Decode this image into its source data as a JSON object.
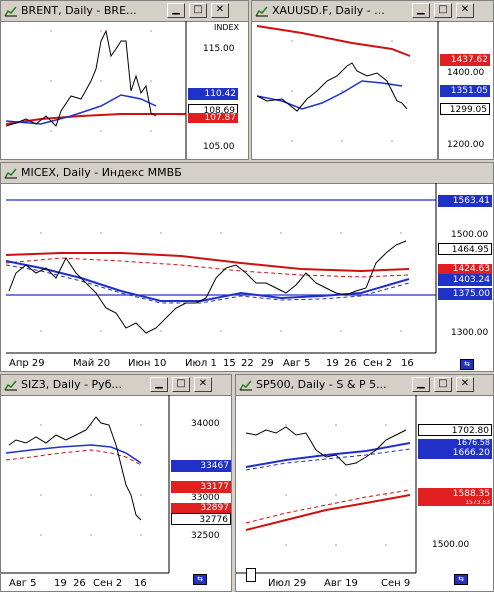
{
  "windows": {
    "brent": {
      "title": "BRENT, Daily - BRE...",
      "index_label": "INDEX",
      "price_labels": [
        "115.00",
        "105.00"
      ],
      "badges": [
        {
          "value": "110.42",
          "color": "#2031c8",
          "style": "solid"
        },
        {
          "value": "108.69",
          "color": "#ffffff",
          "style": "arrow"
        },
        {
          "value": "107.87",
          "color": "#e02020",
          "style": "solid"
        }
      ]
    },
    "xau": {
      "title": "XAUUSD.F, Daily - ...",
      "price_labels": [
        "1400.00",
        "1200.00"
      ],
      "badges": [
        {
          "value": "1437.62",
          "color": "#e02020",
          "style": "solid"
        },
        {
          "value": "1351.05",
          "color": "#2031c8",
          "style": "solid"
        },
        {
          "value": "1299.05",
          "color": "#ffffff",
          "style": "arrow"
        }
      ]
    },
    "micex": {
      "title": "MICEX, Daily - Индекс ММВБ",
      "price_labels": [
        "1500.00",
        "1300.00"
      ],
      "badges": [
        {
          "value": "1563.41",
          "color": "#2031c8",
          "style": "solid"
        },
        {
          "value": "1464.95",
          "color": "#ffffff",
          "style": "arrow"
        },
        {
          "value": "1424.63",
          "color": "#e02020",
          "style": "solid"
        },
        {
          "value": "1403.24",
          "color": "#2031c8",
          "style": "solid"
        },
        {
          "value": "1375.00",
          "color": "#2031c8",
          "style": "solid"
        }
      ],
      "dates": [
        "Апр 29",
        "Май 20",
        "Июн 10",
        "Июл 1",
        "15",
        "22",
        "29",
        "Авг 5",
        "19",
        "26",
        "Сен 2",
        "16"
      ]
    },
    "siz": {
      "title": "SIZ3, Daily - Руб...",
      "price_labels": [
        "34000",
        "33000",
        "32500"
      ],
      "badges": [
        {
          "value": "33467",
          "color": "#2031c8",
          "style": "solid"
        },
        {
          "value": "33177",
          "color": "#e02020",
          "style": "solid"
        },
        {
          "value": "32897",
          "color": "#e02020",
          "style": "solid"
        },
        {
          "value": "32776",
          "color": "#ffffff",
          "style": "arrow"
        }
      ],
      "dates": [
        "Авг 5",
        "19",
        "26",
        "Сен 2",
        "16"
      ]
    },
    "sp": {
      "title": "SP500, Daily - S & P 5...",
      "price_labels": [
        "1500.00"
      ],
      "badges": [
        {
          "value": "1702.80",
          "color": "#ffffff",
          "style": "arrow"
        },
        {
          "value": "1676.58",
          "color": "#2031c8",
          "style": "solid"
        },
        {
          "value": "1666.20",
          "color": "#2031c8",
          "style": "solid"
        },
        {
          "value": "1588.35",
          "color": "#e02020",
          "style": "solid"
        },
        {
          "value": "1573.53",
          "color": "#e02020",
          "style": "solid"
        }
      ],
      "dates": [
        "Июл 29",
        "Авг 19",
        "Сен 9"
      ]
    }
  }
}
